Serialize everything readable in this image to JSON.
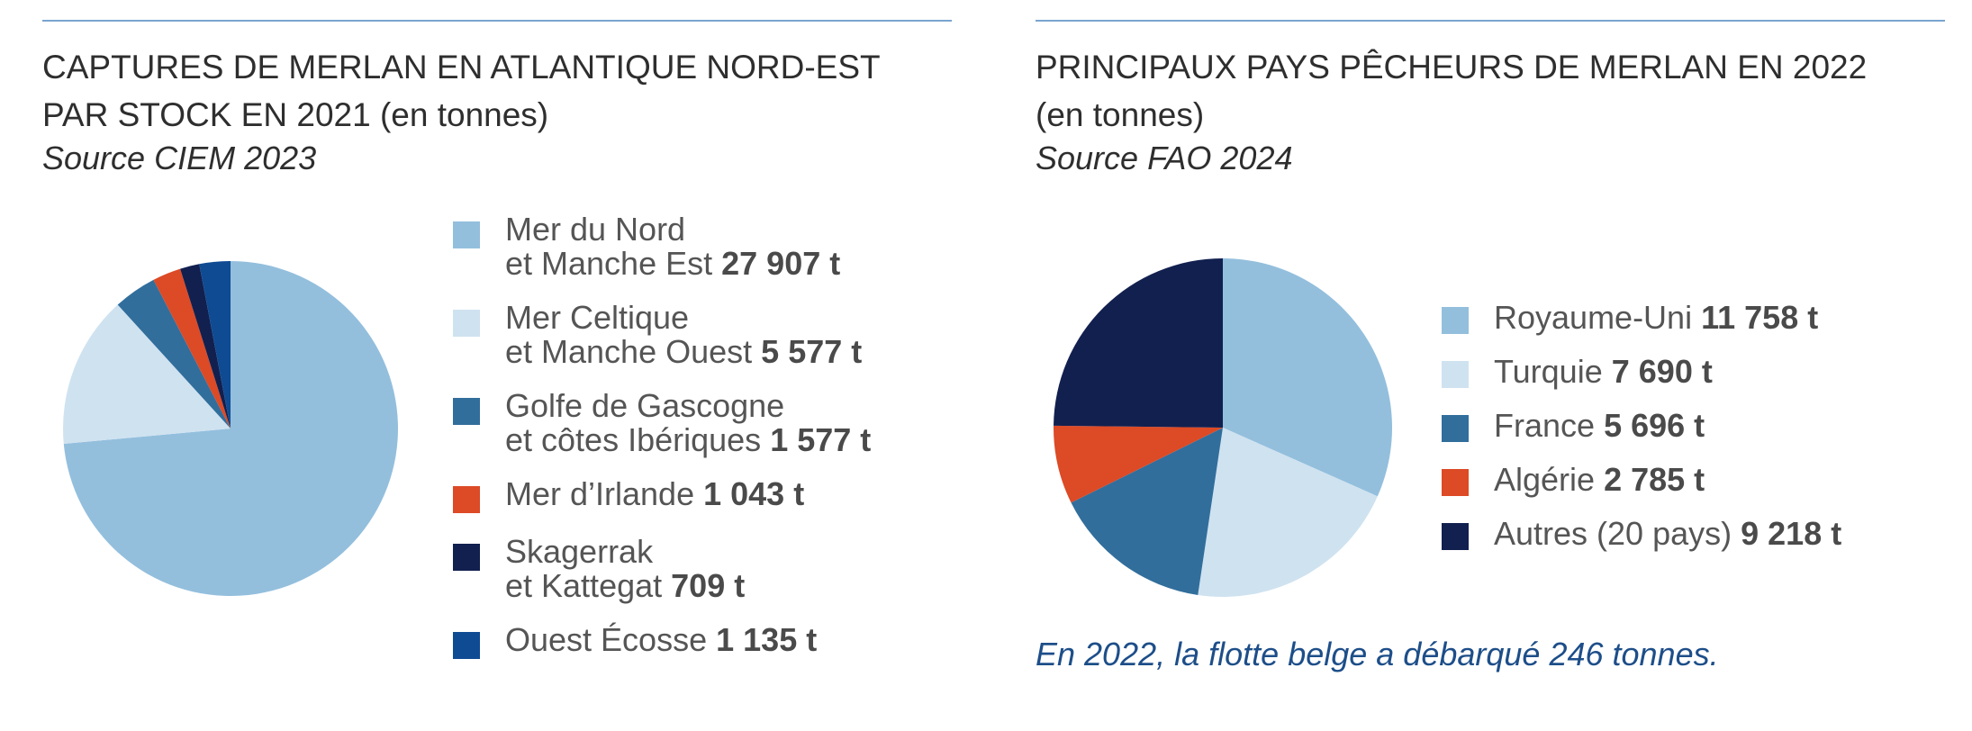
{
  "left": {
    "title_line1": "CAPTURES DE MERLAN EN ATLANTIQUE NORD-EST",
    "title_line2": "PAR STOCK EN 2021",
    "title_unit": "(en tonnes)",
    "source": "Source CIEM 2023"
  },
  "right": {
    "title_line1": "PRINCIPAUX PAYS PÊCHEURS DE MERLAN EN 2022",
    "title_unit": "(en tonnes)",
    "source": "Source FAO 2024",
    "note": "En 2022, la flotte belge a débarqué 246 tonnes."
  },
  "chart_data": [
    {
      "type": "pie",
      "title": "CAPTURES DE MERLAN EN ATLANTIQUE NORD-EST PAR STOCK EN 2021 (en tonnes)",
      "categories": [
        "Mer du Nord et Manche Est",
        "Mer Celtique et Manche Ouest",
        "Golfe de Gascogne et côtes Ibériques",
        "Mer d’Irlande",
        "Skagerrak et Kattegat",
        "Ouest Écosse"
      ],
      "legend_lines": [
        [
          "Mer du Nord",
          "et Manche Est"
        ],
        [
          "Mer Celtique",
          "et Manche Ouest"
        ],
        [
          "Golfe de Gascogne",
          "et côtes Ibériques"
        ],
        [
          "Mer d’Irlande"
        ],
        [
          "Skagerrak",
          "et Kattegat"
        ],
        [
          "Ouest Écosse"
        ]
      ],
      "value_labels": [
        "27 907 t",
        "5 577 t",
        "1 577 t",
        "1 043 t",
        "709 t",
        "1 135 t"
      ],
      "values": [
        27907,
        5577,
        1577,
        1043,
        709,
        1135
      ],
      "colors": [
        "#93bfdd",
        "#cfe2f0",
        "#316e9c",
        "#dc4a26",
        "#12204f",
        "#0f4b93"
      ],
      "legend_position": "right"
    },
    {
      "type": "pie",
      "title": "PRINCIPAUX PAYS PÊCHEURS DE MERLAN EN 2022 (en tonnes)",
      "categories": [
        "Royaume-Uni",
        "Turquie",
        "France",
        "Algérie",
        "Autres (20 pays)"
      ],
      "value_labels": [
        "11 758 t",
        "7 690 t",
        "5 696 t",
        "2 785 t",
        "9 218 t"
      ],
      "values": [
        11758,
        7690,
        5696,
        2785,
        9218
      ],
      "colors": [
        "#93bfdd",
        "#cfe2f0",
        "#316e9c",
        "#dc4a26",
        "#12204f"
      ],
      "legend_position": "right"
    }
  ]
}
